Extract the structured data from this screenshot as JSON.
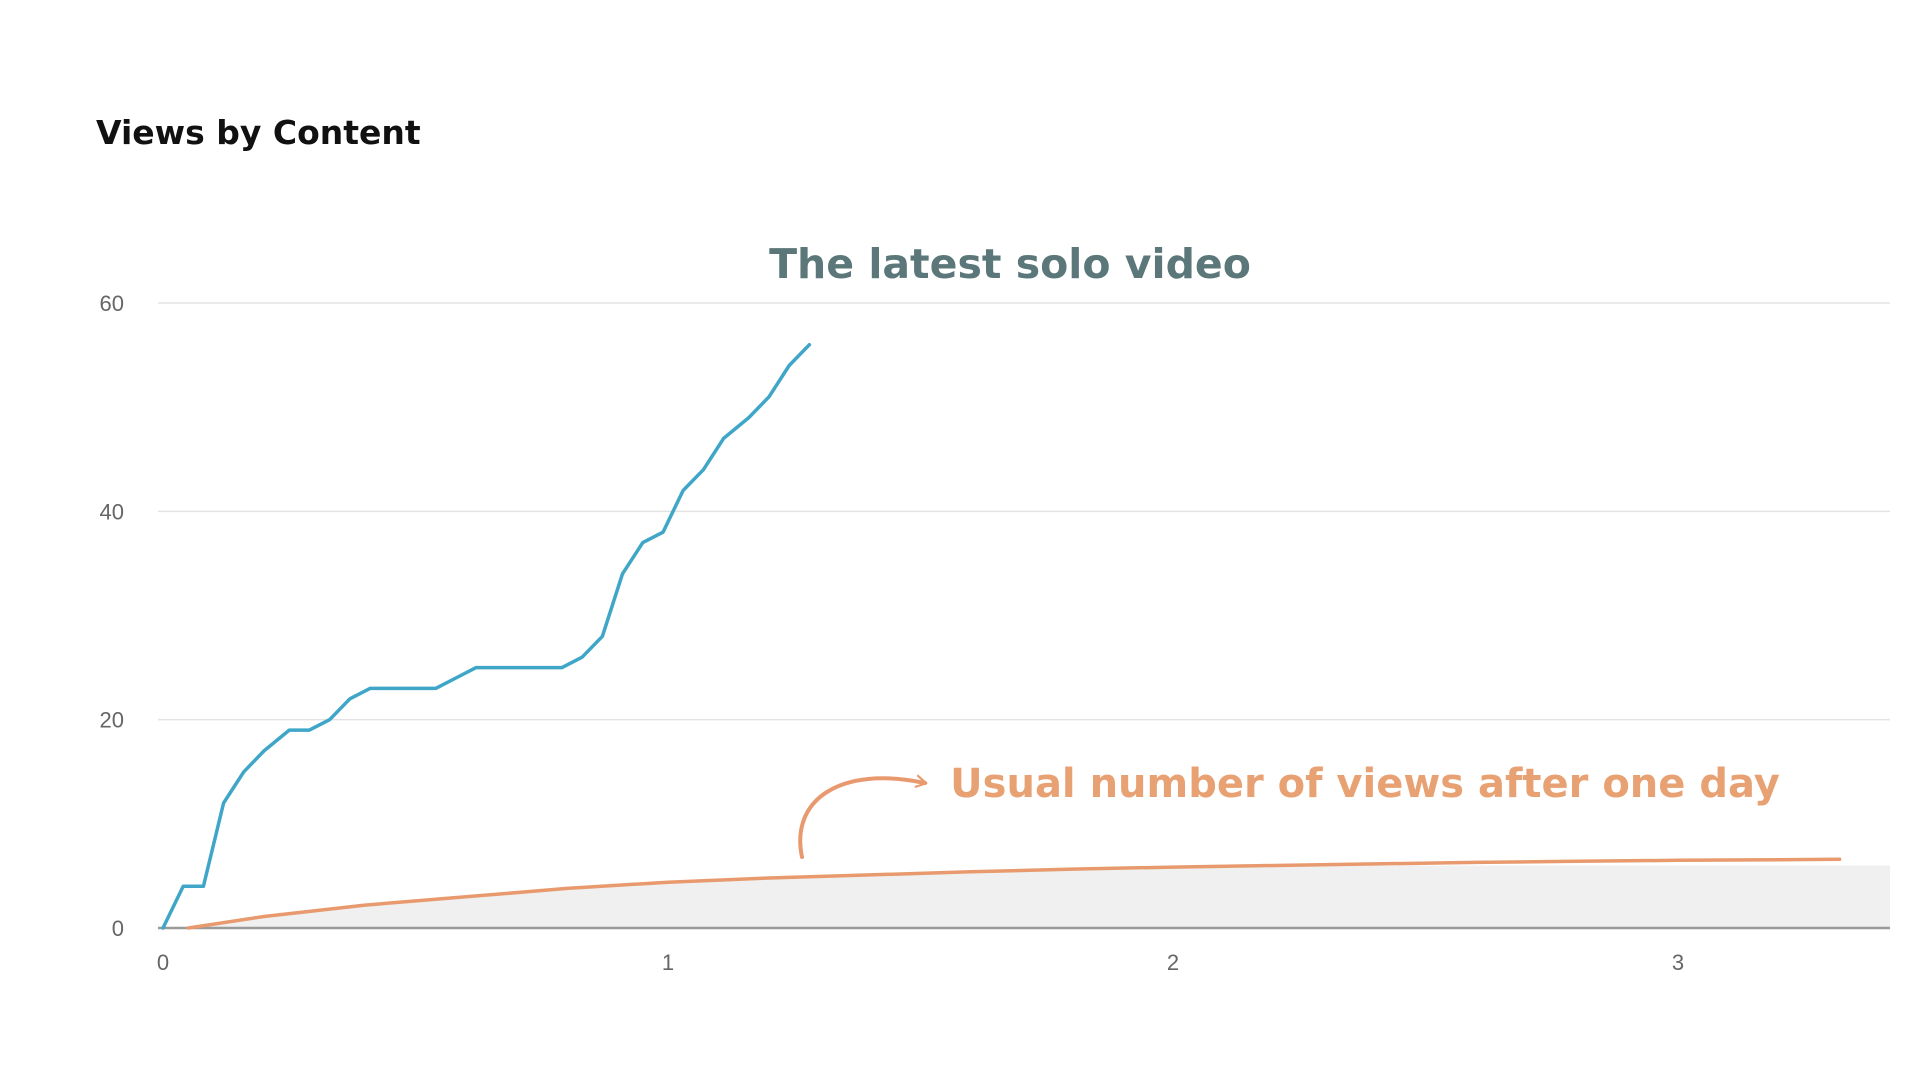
{
  "header": {
    "title": "Views by Content"
  },
  "colors": {
    "latest_line": "#3fa6c8",
    "usual_line": "#e89a6e",
    "usual_band": "#f0f0f0",
    "grid": "#e3e3e3",
    "baseline": "#9a9a9a",
    "annotation_teal": "#5b7779",
    "annotation_orange": "#e8a172"
  },
  "chart_data": {
    "type": "line",
    "xlim": [
      0,
      3.4
    ],
    "ylim": [
      0,
      60
    ],
    "x_ticks": [
      0,
      1,
      2,
      3
    ],
    "y_ticks": [
      0,
      20,
      40,
      60
    ],
    "grid": true,
    "annotations": [
      {
        "text": "The latest solo video",
        "series": "latest"
      },
      {
        "text": "Usual number of views after one day",
        "series": "usual"
      }
    ],
    "series": [
      {
        "id": "latest",
        "points": [
          [
            0.0,
            0
          ],
          [
            0.04,
            4
          ],
          [
            0.08,
            4
          ],
          [
            0.12,
            12
          ],
          [
            0.16,
            15
          ],
          [
            0.2,
            17
          ],
          [
            0.25,
            19
          ],
          [
            0.29,
            19
          ],
          [
            0.33,
            20
          ],
          [
            0.37,
            22
          ],
          [
            0.41,
            23
          ],
          [
            0.45,
            23
          ],
          [
            0.5,
            23
          ],
          [
            0.54,
            23
          ],
          [
            0.58,
            24
          ],
          [
            0.62,
            25
          ],
          [
            0.66,
            25
          ],
          [
            0.7,
            25
          ],
          [
            0.74,
            25
          ],
          [
            0.79,
            25
          ],
          [
            0.83,
            26
          ],
          [
            0.87,
            28
          ],
          [
            0.91,
            34
          ],
          [
            0.95,
            37
          ],
          [
            0.99,
            38
          ],
          [
            1.03,
            42
          ],
          [
            1.07,
            44
          ],
          [
            1.11,
            47
          ],
          [
            1.16,
            49
          ],
          [
            1.2,
            51
          ],
          [
            1.24,
            54
          ],
          [
            1.28,
            56
          ]
        ]
      },
      {
        "id": "usual",
        "points": [
          [
            0.05,
            0
          ],
          [
            0.2,
            1.1
          ],
          [
            0.4,
            2.2
          ],
          [
            0.6,
            3.0
          ],
          [
            0.8,
            3.8
          ],
          [
            1.0,
            4.4
          ],
          [
            1.2,
            4.8
          ],
          [
            1.4,
            5.1
          ],
          [
            1.6,
            5.4
          ],
          [
            1.8,
            5.65
          ],
          [
            2.0,
            5.85
          ],
          [
            2.2,
            6.0
          ],
          [
            2.4,
            6.15
          ],
          [
            2.6,
            6.3
          ],
          [
            2.8,
            6.4
          ],
          [
            3.0,
            6.5
          ],
          [
            3.2,
            6.55
          ],
          [
            3.32,
            6.6
          ]
        ],
        "band_upper": 6.0
      }
    ]
  }
}
